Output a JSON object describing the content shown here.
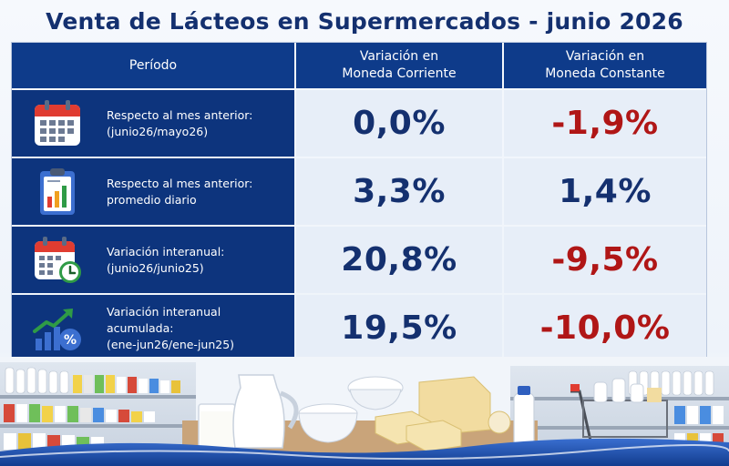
{
  "title": "Venta de Lácteos en Supermercados - junio 2026",
  "headers": {
    "period": "Período",
    "current": "Variación en\nMoneda Corriente",
    "constant": "Variación en\nMoneda Constante"
  },
  "rows": [
    {
      "icon": "calendar-icon",
      "line1": "Respecto al mes anterior:",
      "line2": "(junio26/mayo26)",
      "current": "0,0%",
      "constant": "-1,9%",
      "constant_color": "#b01616"
    },
    {
      "icon": "clipboard-chart-icon",
      "line1": "Respecto al mes anterior:",
      "line2": "promedio diario",
      "current": "3,3%",
      "constant": "1,4%",
      "constant_color": "#14306f"
    },
    {
      "icon": "calendar-clock-icon",
      "line1": "Variación interanual:",
      "line2": "(junio26/junio25)",
      "current": "20,8%",
      "constant": "-9,5%",
      "constant_color": "#b01616"
    },
    {
      "icon": "growth-percent-icon",
      "line1": "Variación interanual acumulada:",
      "line2": "(ene-jun26/ene-jun25)",
      "current": "19,5%",
      "constant": "-10,0%",
      "constant_color": "#b01616"
    }
  ]
}
